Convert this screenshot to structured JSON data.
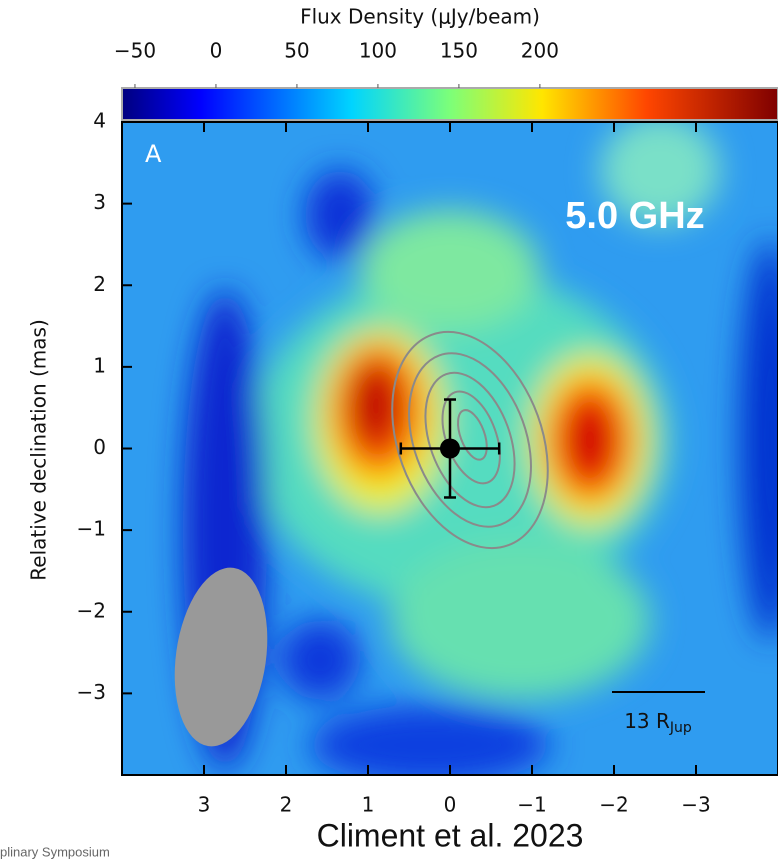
{
  "chart_data": {
    "type": "image",
    "panel_label": "A",
    "frequency_label": "5.0 GHz",
    "ylabel": "Relative declination (mas)",
    "xlim": [
      4,
      -4
    ],
    "ylim": [
      -4,
      4
    ],
    "xticks": [
      3,
      2,
      1,
      0,
      {
        "value": -1,
        "label": "−1"
      },
      {
        "value": -2,
        "label": "−2"
      },
      {
        "value": -3,
        "label": "−3"
      }
    ],
    "yticks": [
      4,
      3,
      2,
      1,
      0,
      {
        "value": -1,
        "label": "−1"
      },
      {
        "value": -2,
        "label": "−2"
      },
      {
        "value": -3,
        "label": "−3"
      }
    ],
    "colorbar": {
      "label": "Flux Density (μJy/beam)",
      "lim": [
        -58,
        347
      ],
      "ticks": [
        {
          "value": -50,
          "label": "−50"
        },
        0,
        50,
        100,
        150,
        200
      ]
    },
    "source": {
      "x": 0,
      "y": 0,
      "xerr": 0.6,
      "yerr": 0.6
    },
    "scale_bar": {
      "label": "13 R",
      "subscript": "Jup"
    },
    "credit": "Climent et al. 2023",
    "footer": "plinary Symposium"
  }
}
